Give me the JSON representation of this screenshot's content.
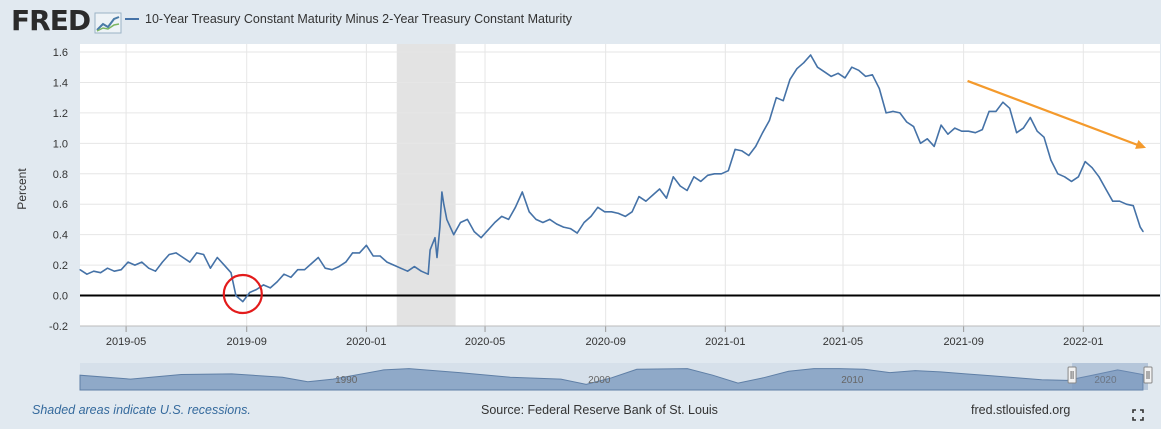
{
  "header": {
    "logo_text": "FRED",
    "legend_label": "10-Year Treasury Constant Maturity Minus 2-Year Treasury Constant Maturity",
    "series_color": "#4572a7"
  },
  "footer": {
    "note": "Shaded areas indicate U.S. recessions.",
    "source": "Source: Federal Reserve Bank of St. Louis",
    "site": "fred.stlouisfed.org"
  },
  "icons": {
    "fullscreen": "fullscreen-icon",
    "logo_graph": "fred-logo-graph-icon"
  },
  "annotations": {
    "circle_color": "#e31b1b",
    "arrow_color": "#f49a2c"
  },
  "chart_data": {
    "type": "line",
    "title": "",
    "xlabel": "",
    "ylabel": "Percent",
    "ylim": [
      -0.2,
      1.6
    ],
    "yticks": [
      -0.2,
      0.0,
      0.2,
      0.4,
      0.6,
      0.8,
      1.0,
      1.2,
      1.4,
      1.6
    ],
    "ytick_labels": [
      "-0.2",
      "0.0",
      "0.2",
      "0.4",
      "0.6",
      "0.8",
      "1.0",
      "1.2",
      "1.4",
      "1.6"
    ],
    "xlim": [
      "2019-03-15",
      "2022-03-08"
    ],
    "xticks": [
      "2019-05-01",
      "2019-09-01",
      "2020-01-01",
      "2020-05-01",
      "2020-09-01",
      "2021-01-01",
      "2021-05-01",
      "2021-09-01",
      "2022-01-01"
    ],
    "xtick_labels": [
      "2019-05",
      "2019-09",
      "2020-01",
      "2020-05",
      "2020-09",
      "2021-01",
      "2021-05",
      "2021-09",
      "2022-01"
    ],
    "grid": true,
    "zero_line": true,
    "recession": {
      "start": "2020-02-01",
      "end": "2020-04-01"
    },
    "series": [
      {
        "name": "10-Year Treasury Constant Maturity Minus 2-Year Treasury Constant Maturity",
        "points": [
          [
            "2019-03-15",
            0.17
          ],
          [
            "2019-03-22",
            0.14
          ],
          [
            "2019-03-29",
            0.16
          ],
          [
            "2019-04-05",
            0.15
          ],
          [
            "2019-04-12",
            0.18
          ],
          [
            "2019-04-19",
            0.16
          ],
          [
            "2019-04-26",
            0.17
          ],
          [
            "2019-05-03",
            0.22
          ],
          [
            "2019-05-10",
            0.2
          ],
          [
            "2019-05-17",
            0.22
          ],
          [
            "2019-05-24",
            0.18
          ],
          [
            "2019-05-31",
            0.16
          ],
          [
            "2019-06-07",
            0.22
          ],
          [
            "2019-06-14",
            0.27
          ],
          [
            "2019-06-21",
            0.28
          ],
          [
            "2019-06-28",
            0.25
          ],
          [
            "2019-07-05",
            0.22
          ],
          [
            "2019-07-12",
            0.28
          ],
          [
            "2019-07-19",
            0.27
          ],
          [
            "2019-07-26",
            0.18
          ],
          [
            "2019-08-02",
            0.25
          ],
          [
            "2019-08-09",
            0.2
          ],
          [
            "2019-08-16",
            0.15
          ],
          [
            "2019-08-21",
            0.0
          ],
          [
            "2019-08-28",
            -0.04
          ],
          [
            "2019-09-04",
            0.02
          ],
          [
            "2019-09-11",
            0.04
          ],
          [
            "2019-09-18",
            0.07
          ],
          [
            "2019-09-25",
            0.05
          ],
          [
            "2019-10-02",
            0.09
          ],
          [
            "2019-10-09",
            0.14
          ],
          [
            "2019-10-16",
            0.12
          ],
          [
            "2019-10-23",
            0.17
          ],
          [
            "2019-10-30",
            0.17
          ],
          [
            "2019-11-06",
            0.21
          ],
          [
            "2019-11-13",
            0.25
          ],
          [
            "2019-11-20",
            0.18
          ],
          [
            "2019-11-27",
            0.17
          ],
          [
            "2019-12-04",
            0.19
          ],
          [
            "2019-12-11",
            0.22
          ],
          [
            "2019-12-18",
            0.28
          ],
          [
            "2019-12-25",
            0.28
          ],
          [
            "2020-01-01",
            0.33
          ],
          [
            "2020-01-08",
            0.26
          ],
          [
            "2020-01-15",
            0.26
          ],
          [
            "2020-01-22",
            0.22
          ],
          [
            "2020-01-29",
            0.2
          ],
          [
            "2020-02-05",
            0.18
          ],
          [
            "2020-02-12",
            0.16
          ],
          [
            "2020-02-19",
            0.19
          ],
          [
            "2020-02-26",
            0.16
          ],
          [
            "2020-03-04",
            0.14
          ],
          [
            "2020-03-06",
            0.3
          ],
          [
            "2020-03-11",
            0.38
          ],
          [
            "2020-03-13",
            0.25
          ],
          [
            "2020-03-16",
            0.45
          ],
          [
            "2020-03-18",
            0.68
          ],
          [
            "2020-03-20",
            0.6
          ],
          [
            "2020-03-23",
            0.5
          ],
          [
            "2020-03-30",
            0.4
          ],
          [
            "2020-04-06",
            0.48
          ],
          [
            "2020-04-13",
            0.5
          ],
          [
            "2020-04-20",
            0.42
          ],
          [
            "2020-04-27",
            0.38
          ],
          [
            "2020-05-04",
            0.43
          ],
          [
            "2020-05-11",
            0.48
          ],
          [
            "2020-05-18",
            0.52
          ],
          [
            "2020-05-25",
            0.5
          ],
          [
            "2020-06-01",
            0.58
          ],
          [
            "2020-06-08",
            0.68
          ],
          [
            "2020-06-15",
            0.55
          ],
          [
            "2020-06-22",
            0.5
          ],
          [
            "2020-06-29",
            0.48
          ],
          [
            "2020-07-06",
            0.5
          ],
          [
            "2020-07-13",
            0.47
          ],
          [
            "2020-07-20",
            0.45
          ],
          [
            "2020-07-27",
            0.44
          ],
          [
            "2020-08-03",
            0.41
          ],
          [
            "2020-08-10",
            0.48
          ],
          [
            "2020-08-17",
            0.52
          ],
          [
            "2020-08-24",
            0.58
          ],
          [
            "2020-08-31",
            0.55
          ],
          [
            "2020-09-07",
            0.55
          ],
          [
            "2020-09-14",
            0.54
          ],
          [
            "2020-09-21",
            0.52
          ],
          [
            "2020-09-28",
            0.55
          ],
          [
            "2020-10-05",
            0.65
          ],
          [
            "2020-10-12",
            0.62
          ],
          [
            "2020-10-19",
            0.66
          ],
          [
            "2020-10-26",
            0.7
          ],
          [
            "2020-11-02",
            0.64
          ],
          [
            "2020-11-09",
            0.78
          ],
          [
            "2020-11-16",
            0.72
          ],
          [
            "2020-11-23",
            0.69
          ],
          [
            "2020-11-30",
            0.78
          ],
          [
            "2020-12-07",
            0.75
          ],
          [
            "2020-12-14",
            0.79
          ],
          [
            "2020-12-21",
            0.8
          ],
          [
            "2020-12-28",
            0.8
          ],
          [
            "2021-01-04",
            0.82
          ],
          [
            "2021-01-11",
            0.96
          ],
          [
            "2021-01-18",
            0.95
          ],
          [
            "2021-01-25",
            0.92
          ],
          [
            "2021-02-01",
            0.98
          ],
          [
            "2021-02-08",
            1.07
          ],
          [
            "2021-02-15",
            1.15
          ],
          [
            "2021-02-22",
            1.3
          ],
          [
            "2021-03-01",
            1.28
          ],
          [
            "2021-03-08",
            1.42
          ],
          [
            "2021-03-15",
            1.49
          ],
          [
            "2021-03-22",
            1.53
          ],
          [
            "2021-03-29",
            1.58
          ],
          [
            "2021-04-05",
            1.5
          ],
          [
            "2021-04-12",
            1.47
          ],
          [
            "2021-04-19",
            1.44
          ],
          [
            "2021-04-26",
            1.46
          ],
          [
            "2021-05-03",
            1.43
          ],
          [
            "2021-05-10",
            1.5
          ],
          [
            "2021-05-17",
            1.48
          ],
          [
            "2021-05-24",
            1.44
          ],
          [
            "2021-05-31",
            1.45
          ],
          [
            "2021-06-07",
            1.36
          ],
          [
            "2021-06-14",
            1.2
          ],
          [
            "2021-06-21",
            1.21
          ],
          [
            "2021-06-28",
            1.2
          ],
          [
            "2021-07-05",
            1.14
          ],
          [
            "2021-07-12",
            1.11
          ],
          [
            "2021-07-19",
            1.0
          ],
          [
            "2021-07-26",
            1.03
          ],
          [
            "2021-08-02",
            0.98
          ],
          [
            "2021-08-09",
            1.12
          ],
          [
            "2021-08-16",
            1.06
          ],
          [
            "2021-08-23",
            1.1
          ],
          [
            "2021-08-30",
            1.08
          ],
          [
            "2021-09-06",
            1.08
          ],
          [
            "2021-09-13",
            1.07
          ],
          [
            "2021-09-20",
            1.09
          ],
          [
            "2021-09-27",
            1.21
          ],
          [
            "2021-10-04",
            1.21
          ],
          [
            "2021-10-11",
            1.27
          ],
          [
            "2021-10-18",
            1.23
          ],
          [
            "2021-10-25",
            1.07
          ],
          [
            "2021-11-01",
            1.1
          ],
          [
            "2021-11-08",
            1.17
          ],
          [
            "2021-11-15",
            1.08
          ],
          [
            "2021-11-22",
            1.04
          ],
          [
            "2021-11-29",
            0.89
          ],
          [
            "2021-12-06",
            0.8
          ],
          [
            "2021-12-13",
            0.78
          ],
          [
            "2021-12-20",
            0.75
          ],
          [
            "2021-12-27",
            0.78
          ],
          [
            "2022-01-03",
            0.88
          ],
          [
            "2022-01-10",
            0.84
          ],
          [
            "2022-01-17",
            0.78
          ],
          [
            "2022-01-24",
            0.7
          ],
          [
            "2022-01-31",
            0.62
          ],
          [
            "2022-02-07",
            0.62
          ],
          [
            "2022-02-14",
            0.6
          ],
          [
            "2022-02-21",
            0.59
          ],
          [
            "2022-02-28",
            0.45
          ],
          [
            "2022-03-03",
            0.42
          ]
        ]
      }
    ]
  },
  "navigator": {
    "labels": [
      "1990",
      "2000",
      "2010",
      "2020"
    ],
    "label_years": [
      1990,
      2000,
      2010,
      2020
    ],
    "range_years": [
      1980,
      2022.2
    ],
    "selected_years": [
      2019.2,
      2022.2
    ],
    "profile": [
      [
        1980,
        0.5
      ],
      [
        1982,
        0.2
      ],
      [
        1984,
        0.55
      ],
      [
        1986,
        0.6
      ],
      [
        1988,
        0.35
      ],
      [
        1989,
        0.0
      ],
      [
        1990,
        0.2
      ],
      [
        1992,
        0.9
      ],
      [
        1993,
        1.0
      ],
      [
        1995,
        0.7
      ],
      [
        1997,
        0.35
      ],
      [
        1999,
        0.2
      ],
      [
        2000,
        -0.2
      ],
      [
        2001,
        0.3
      ],
      [
        2002,
        0.95
      ],
      [
        2004,
        1.0
      ],
      [
        2005,
        0.5
      ],
      [
        2006,
        -0.1
      ],
      [
        2007,
        0.3
      ],
      [
        2008,
        0.8
      ],
      [
        2009,
        1.0
      ],
      [
        2010,
        1.0
      ],
      [
        2011,
        0.95
      ],
      [
        2012,
        0.7
      ],
      [
        2013,
        0.85
      ],
      [
        2014,
        0.75
      ],
      [
        2015,
        0.6
      ],
      [
        2016,
        0.45
      ],
      [
        2017,
        0.3
      ],
      [
        2018,
        0.15
      ],
      [
        2019,
        0.1
      ],
      [
        2020,
        0.5
      ],
      [
        2021,
        0.9
      ],
      [
        2022,
        0.55
      ]
    ]
  }
}
